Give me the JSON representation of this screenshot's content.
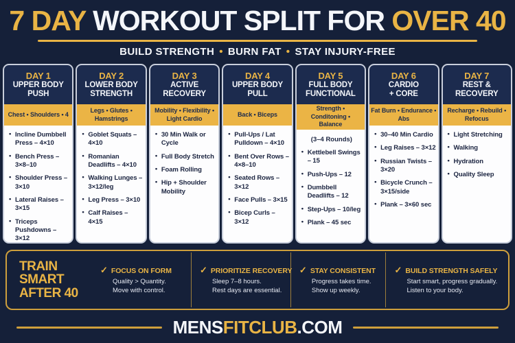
{
  "poster": {
    "title": {
      "lead": "7 DAY",
      "mid": "WORKOUT SPLIT FOR",
      "tail": "OVER 40"
    },
    "subtitle": {
      "seg1": "BUILD STRENGTH",
      "seg2": "BURN FAT",
      "seg3": "STAY INJURY-FREE",
      "dot": "•"
    },
    "days": [
      {
        "day": "DAY 1",
        "title": "UPPER BODY\nPUSH",
        "focus": "Chest • Shoulders • 4",
        "items": [
          "Incline Dumbbell Press – 4×10",
          "Bench Press – 3×8–10",
          "Shoulder Press – 3×10",
          "Lateral Raises – 3×15",
          "Triceps Pushdowns – 3×12"
        ]
      },
      {
        "day": "DAY 2",
        "title": "LOWER BODY\nSTRENGTH",
        "focus": "Legs • Glutes •\nHamstrings",
        "items": [
          "Goblet Squats – 4×10",
          "Romanian Deadlifts – 4×10",
          "Walking Lunges – 3×12/leg",
          "Leg Press – 3×10",
          "Calf Raises – 4×15"
        ]
      },
      {
        "day": "DAY 3",
        "title": "ACTIVE\nRECOVERY",
        "focus": "Mobility • Flexibility •\nLight Cardio",
        "items": [
          "30 Min Walk or Cycle",
          "Full Body Stretch",
          "Foam Rolling",
          "Hip + Shoulder Mobility"
        ]
      },
      {
        "day": "DAY 4",
        "title": "UPPER BODY\nPULL",
        "focus": "Back • Biceps",
        "items": [
          "Pull-Ups / Lat Pulldown – 4×10",
          "Bent Over Rows – 4×8–10",
          "Seated Rows – 3×12",
          "Face Pulls – 3×15",
          "Bicep Curls – 3×12"
        ]
      },
      {
        "day": "DAY 5",
        "title": "FULL BODY\nFUNCTIONAL",
        "focus": "Strength • Conditoning •\nBalance",
        "note": "(3–4 Rounds)",
        "items": [
          "Kettlebell Swings – 15",
          "Push-Ups – 12",
          "Dumbbell Deadlifts – 12",
          "Step-Ups – 10/leg",
          "Plank – 45 sec"
        ]
      },
      {
        "day": "DAY 6",
        "title": "CARDIO\n+ CORE",
        "focus": "Fat Burn • Endurance •\nAbs",
        "items": [
          "30–40 Min Cardio",
          "Leg Raises – 3×12",
          "Russian Twists – 3×20",
          "Bicycle Crunch – 3×15/side",
          "Plank – 3×60 sec"
        ]
      },
      {
        "day": "DAY 7",
        "title": "REST &\nRECOVERY",
        "focus": "Recharge • Rebuild •\nRefocus",
        "items": [
          "Light Stretching",
          "Walking",
          "Hydration",
          "Quality Sleep"
        ]
      }
    ],
    "tips": {
      "headline": "TRAIN\nSMART\nAFTER 40",
      "check_icon": "✓",
      "items": [
        {
          "title": "FOCUS ON FORM",
          "text": "Quality > Quantity.\nMove with control."
        },
        {
          "title": "PRIORITIZE RECOVERY",
          "text": "Sleep 7–8 hours.\nRest days are essential."
        },
        {
          "title": "STAY CONSISTENT",
          "text": "Progress takes time.\nShow up weekly."
        },
        {
          "title": "BUILD STRENGTH SAFELY",
          "text": "Start smart, progress gradually.\nListen to your body."
        }
      ]
    },
    "footer": {
      "brand_white": "MENS",
      "brand_gold": "FITCLUB",
      "brand_suffix": ".COM"
    },
    "colors": {
      "gold": "#E9B445",
      "navy_bg": "#152039",
      "header_navy": "#1C2B4E"
    }
  }
}
